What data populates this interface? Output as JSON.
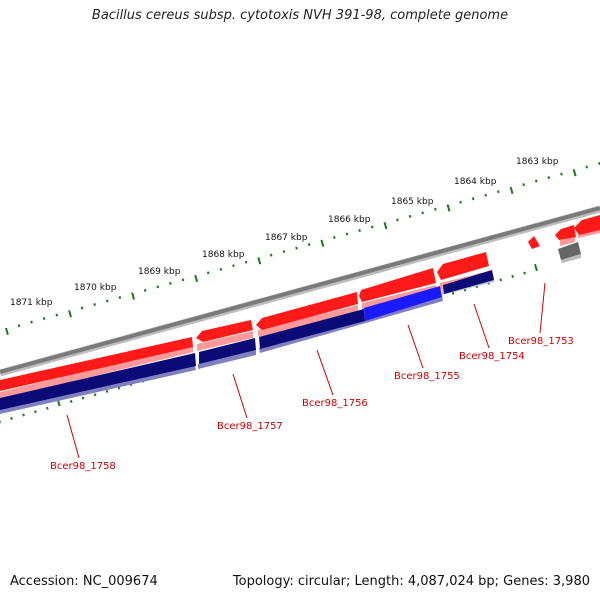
{
  "title": "Bacillus cereus subsp. cytotoxis NVH 391-98, complete genome",
  "footer": {
    "accession": "Accession: NC_009674",
    "summary": "Topology: circular; Length: 4,087,024 bp; Genes: 3,980"
  },
  "colors": {
    "backbone": "#7a7a7a",
    "forward_cds": "#ff1a1a",
    "forward_shadow": "#ff9a9a",
    "reverse_cds": "#0b0b78",
    "reverse_highlight": "#1a1aff",
    "reverse_shadow": "#8080c0",
    "other_feature": "#666666",
    "tick": "#1a7a1a",
    "gene_label": "#cc0000"
  },
  "scale_labels": [
    "1871 kbp",
    "1870 kbp",
    "1869 kbp",
    "1868 kbp",
    "1867 kbp",
    "1866 kbp",
    "1865 kbp",
    "1864 kbp",
    "1863 kbp"
  ],
  "gene_labels": [
    "Bcer98_1758",
    "Bcer98_1757",
    "Bcer98_1756",
    "Bcer98_1755",
    "Bcer98_1754",
    "Bcer98_1753"
  ]
}
